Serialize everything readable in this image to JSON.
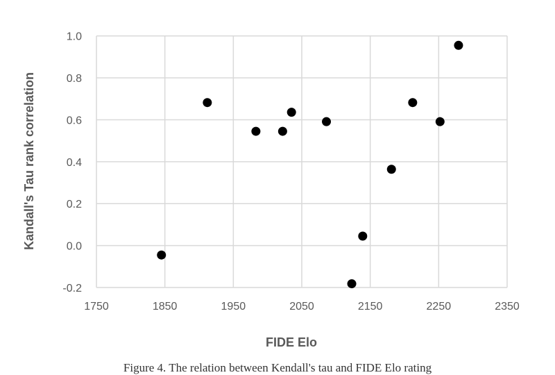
{
  "chart_data": {
    "type": "scatter",
    "title": "",
    "xlabel": "FIDE Elo",
    "ylabel": "Kandall's Tau rank correlation",
    "xlim": [
      1750,
      2350
    ],
    "ylim": [
      -0.2,
      1.0
    ],
    "xticks": [
      "1750",
      "1850",
      "1950",
      "2050",
      "2150",
      "2250",
      "2350"
    ],
    "yticks": [
      "-0.2",
      "0.0",
      "0.2",
      "0.4",
      "0.6",
      "0.8",
      "1.0"
    ],
    "grid": true,
    "marker_color": "#000000",
    "grid_color": "#d9d9d9",
    "x": [
      1845,
      1912,
      1983,
      2022,
      2035,
      2086,
      2123,
      2139,
      2181,
      2212,
      2252,
      2279
    ],
    "y": [
      -0.045,
      0.682,
      0.545,
      0.545,
      0.636,
      0.591,
      -0.182,
      0.045,
      0.364,
      0.682,
      0.591,
      0.955
    ]
  },
  "caption": "Figure 4. The relation between Kendall's tau and FIDE Elo rating"
}
